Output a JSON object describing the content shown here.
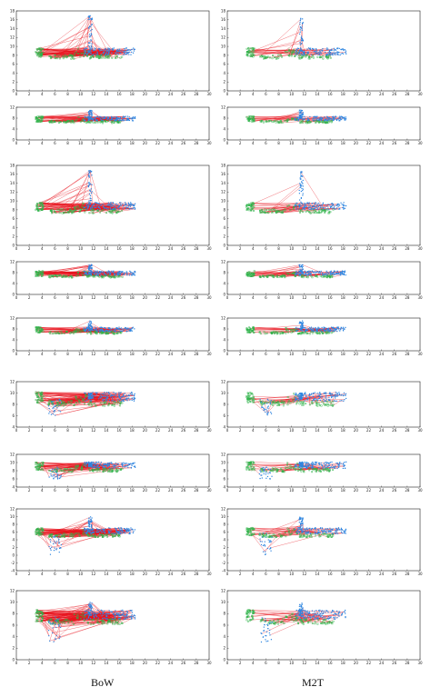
{
  "labels": {
    "left": "BoW",
    "right": "M2T"
  },
  "colors": {
    "links": "#e8111b",
    "series_a": "#2fb34a",
    "series_b": "#2f86e0",
    "axis": "#222222"
  },
  "chart_data": {
    "type": "scatter",
    "description_series": [
      "trajectory-a (green)",
      "trajectory-b (blue)",
      "matches (red lines)"
    ],
    "x_ticks": [
      0,
      2,
      4,
      6,
      8,
      10,
      12,
      14,
      16,
      18,
      20,
      22,
      24,
      26,
      28,
      30
    ],
    "xlim": [
      0,
      30
    ],
    "rows": [
      {
        "ylim": [
          0,
          18
        ],
        "y_ticks": [
          0,
          2,
          4,
          6,
          8,
          10,
          12,
          14,
          16,
          18
        ],
        "vertical_peak": 17,
        "match_density_left": 120,
        "match_density_right": 45,
        "left_x_extent": [
          2,
          19
        ]
      },
      {
        "ylim": [
          0,
          12
        ],
        "y_ticks": [
          0,
          4,
          8,
          12
        ],
        "vertical_peak": 11,
        "match_density_left": 70,
        "match_density_right": 35,
        "left_x_extent": [
          3,
          19
        ]
      },
      {
        "ylim": [
          0,
          18
        ],
        "y_ticks": [
          0,
          2,
          4,
          6,
          8,
          10,
          12,
          14,
          16,
          18
        ],
        "vertical_peak": 17,
        "match_density_left": 110,
        "match_density_right": 40,
        "left_x_extent": [
          4,
          19
        ]
      },
      {
        "ylim": [
          0,
          12
        ],
        "y_ticks": [
          0,
          4,
          8,
          12
        ],
        "vertical_peak": 11,
        "match_density_left": 90,
        "match_density_right": 45,
        "left_x_extent": [
          3,
          18
        ]
      },
      {
        "ylim": [
          0,
          12
        ],
        "y_ticks": [
          0,
          4,
          8,
          12
        ],
        "vertical_peak": 11,
        "match_density_left": 85,
        "match_density_right": 35,
        "left_x_extent": [
          3,
          16
        ]
      },
      {
        "ylim": [
          4,
          12
        ],
        "y_ticks": [
          4,
          6,
          8,
          10,
          12
        ],
        "vertical_peak": 10,
        "match_density_left": 120,
        "match_density_right": 40,
        "left_x_extent": [
          2,
          16
        ]
      },
      {
        "ylim": [
          4,
          12
        ],
        "y_ticks": [
          4,
          6,
          8,
          10,
          12
        ],
        "vertical_peak": 10,
        "match_density_left": 100,
        "match_density_right": 40,
        "left_x_extent": [
          3,
          16
        ]
      },
      {
        "ylim": [
          -4,
          12
        ],
        "y_ticks": [
          -4,
          -2,
          0,
          2,
          4,
          6,
          8,
          10,
          12
        ],
        "vertical_peak": 10,
        "match_density_left": 140,
        "match_density_right": 45,
        "left_x_extent": [
          0,
          16
        ]
      },
      {
        "ylim": [
          0,
          12
        ],
        "y_ticks": [
          0,
          2,
          4,
          6,
          8,
          10,
          12
        ],
        "vertical_peak": 10,
        "match_density_left": 220,
        "match_density_right": 50,
        "left_x_extent": [
          1,
          16
        ]
      }
    ]
  }
}
